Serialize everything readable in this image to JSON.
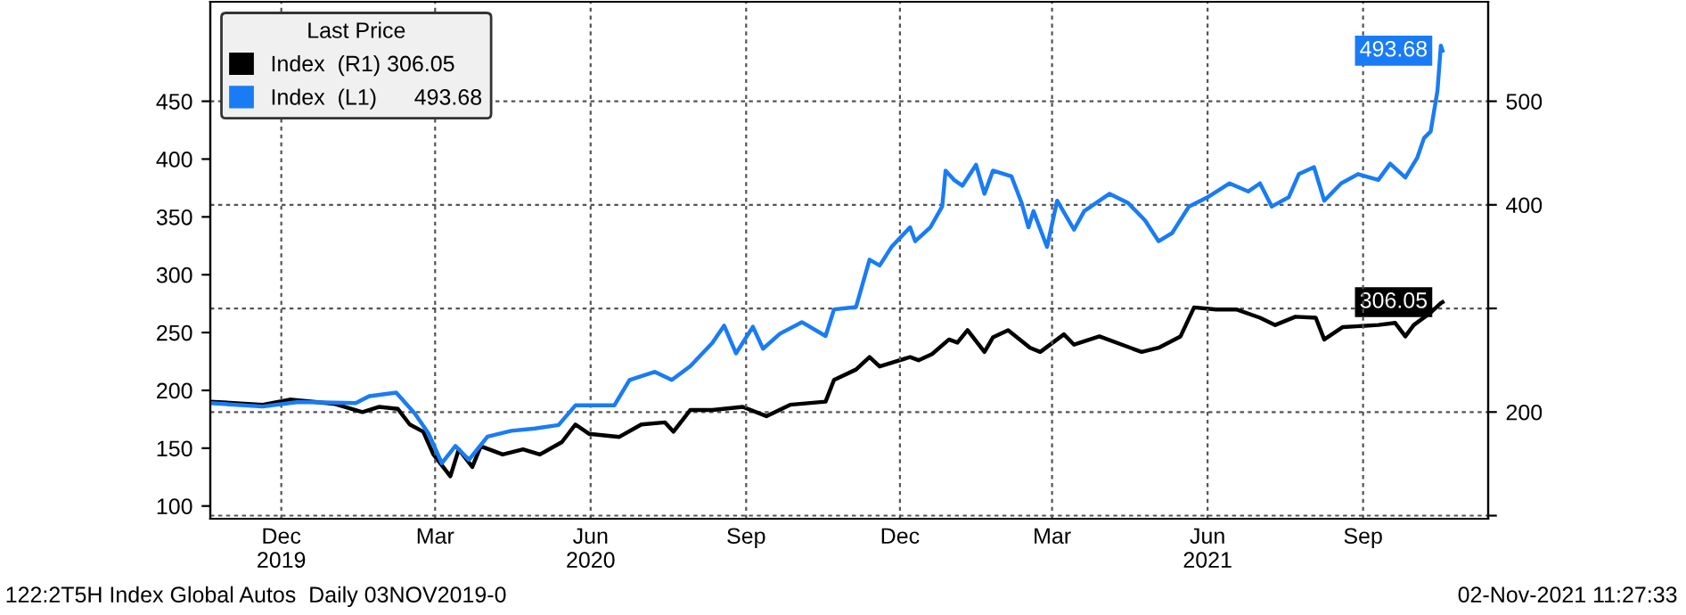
{
  "chart_data": {
    "type": "line",
    "legend_title": "Last Price",
    "legend": "top left",
    "grid": true,
    "line_style": "solid",
    "xlim": [
      "2019-11-04",
      "2021-11-29"
    ],
    "xticks": [
      {
        "value": "2019-12-16",
        "label": "Dec\n2019"
      },
      {
        "value": "2020-03-16",
        "label": "Mar"
      },
      {
        "value": "2020-06-16",
        "label": "Jun\n2020"
      },
      {
        "value": "2020-09-16",
        "label": "Sep"
      },
      {
        "value": "2020-12-16",
        "label": "Dec"
      },
      {
        "value": "2021-03-16",
        "label": "Mar"
      },
      {
        "value": "2021-06-16",
        "label": "Jun\n2021"
      },
      {
        "value": "2021-09-16",
        "label": "Sep"
      }
    ],
    "ylim": [
      89,
      536
    ],
    "yticks": [
      100,
      150,
      200,
      250,
      300,
      350,
      400,
      450
    ],
    "y2lim": [
      97,
      596
    ],
    "y2ticks": [
      {
        "value": 100,
        "label": null
      },
      200,
      {
        "value": 300,
        "label": null
      },
      400,
      500
    ],
    "series": [
      {
        "name": "Index  (R1) 306.05",
        "color": "#000000",
        "axis": "y2",
        "x": [
          "2019-11-04",
          "2019-12-05",
          "2019-12-21",
          "2020-01-16",
          "2020-02-02",
          "2020-02-12",
          "2020-02-23",
          "2020-03-01",
          "2020-03-09",
          "2020-03-15",
          "2020-03-25",
          "2020-03-30",
          "2020-04-07",
          "2020-04-12",
          "2020-04-25",
          "2020-05-07",
          "2020-05-17",
          "2020-05-30",
          "2020-06-07",
          "2020-06-15",
          "2020-07-03",
          "2020-07-16",
          "2020-07-30",
          "2020-08-04",
          "2020-08-14",
          "2020-08-27",
          "2020-09-14",
          "2020-09-28",
          "2020-10-12",
          "2020-11-02",
          "2020-11-07",
          "2020-11-20",
          "2020-11-28",
          "2020-12-04",
          "2020-12-22",
          "2020-12-27",
          "2021-01-04",
          "2021-01-14",
          "2021-01-19",
          "2021-01-25",
          "2021-02-04",
          "2021-02-09",
          "2021-02-18",
          "2021-03-03",
          "2021-03-09",
          "2021-03-23",
          "2021-03-29",
          "2021-04-13",
          "2021-05-08",
          "2021-05-18",
          "2021-05-31",
          "2021-06-08",
          "2021-06-21",
          "2021-07-03",
          "2021-07-17",
          "2021-07-26",
          "2021-08-07",
          "2021-08-19",
          "2021-08-24",
          "2021-09-04",
          "2021-09-25",
          "2021-10-05",
          "2021-10-11",
          "2021-10-16",
          "2021-10-26",
          "2021-11-01",
          "2021-11-02"
        ],
        "values": [
          210,
          207,
          212,
          208,
          200,
          205,
          203,
          188,
          181,
          159,
          138,
          164,
          147,
          167,
          159,
          164,
          159,
          171,
          188,
          179,
          176,
          188,
          190,
          181,
          202,
          202,
          205,
          196,
          207,
          210,
          231,
          241,
          253,
          244,
          253,
          250,
          256,
          270,
          267,
          279,
          258,
          272,
          279,
          262,
          258,
          275,
          265,
          273,
          258,
          262,
          273,
          301,
          299,
          299,
          291,
          284,
          292,
          291,
          270,
          282,
          284,
          286,
          273,
          284,
          296,
          305,
          306.05
        ],
        "value_labels": [
          null,
          null,
          null,
          null,
          null,
          null,
          null,
          null,
          null,
          null,
          null,
          null,
          null,
          null,
          null,
          null,
          null,
          null,
          null,
          null,
          null,
          null,
          null,
          null,
          null,
          null,
          null,
          null,
          null,
          null,
          null,
          null,
          null,
          null,
          null,
          null,
          null,
          null,
          null,
          null,
          null,
          null,
          null,
          null,
          null,
          null,
          null,
          null,
          null,
          null,
          null,
          null,
          null,
          null,
          null,
          null,
          null,
          null,
          null,
          null,
          null,
          null,
          null,
          null,
          null,
          null,
          "306.05"
        ]
      },
      {
        "name": "Index  (L1)      493.68",
        "color": "#1a7cf5",
        "axis": "y",
        "x": [
          "2019-11-04",
          "2019-12-05",
          "2019-12-26",
          "2020-01-29",
          "2020-02-06",
          "2020-02-22",
          "2020-03-04",
          "2020-03-12",
          "2020-03-20",
          "2020-03-28",
          "2020-04-05",
          "2020-04-16",
          "2020-04-30",
          "2020-05-14",
          "2020-05-28",
          "2020-06-07",
          "2020-06-18",
          "2020-06-30",
          "2020-07-09",
          "2020-07-24",
          "2020-08-03",
          "2020-08-14",
          "2020-08-27",
          "2020-09-03",
          "2020-09-10",
          "2020-09-20",
          "2020-09-26",
          "2020-10-06",
          "2020-10-19",
          "2020-11-02",
          "2020-11-07",
          "2020-11-20",
          "2020-11-28",
          "2020-12-04",
          "2020-12-11",
          "2020-12-22",
          "2020-12-25",
          "2021-01-03",
          "2021-01-10",
          "2021-01-12",
          "2021-01-17",
          "2021-01-22",
          "2021-01-30",
          "2021-02-04",
          "2021-02-09",
          "2021-02-20",
          "2021-02-26",
          "2021-03-02",
          "2021-03-05",
          "2021-03-13",
          "2021-03-19",
          "2021-03-29",
          "2021-04-04",
          "2021-04-19",
          "2021-04-30",
          "2021-05-10",
          "2021-05-18",
          "2021-05-26",
          "2021-06-05",
          "2021-06-16",
          "2021-06-29",
          "2021-07-10",
          "2021-07-17",
          "2021-07-24",
          "2021-08-03",
          "2021-08-09",
          "2021-08-18",
          "2021-08-24",
          "2021-09-03",
          "2021-09-13",
          "2021-09-25",
          "2021-10-02",
          "2021-10-11",
          "2021-10-18",
          "2021-10-22",
          "2021-10-26",
          "2021-10-30",
          "2021-11-01",
          "2021-11-02"
        ],
        "values": [
          189,
          186,
          190,
          189,
          195,
          198,
          180,
          163,
          137,
          152,
          140,
          160,
          165,
          167,
          170,
          187,
          187,
          187,
          209,
          216,
          209,
          221,
          241,
          256,
          232,
          255,
          236,
          249,
          259,
          247,
          270,
          272,
          313,
          308,
          324,
          341,
          329,
          341,
          359,
          390,
          382,
          377,
          395,
          370,
          390,
          385,
          362,
          341,
          355,
          324,
          364,
          339,
          355,
          370,
          362,
          347,
          329,
          336,
          359,
          367,
          379,
          372,
          379,
          359,
          367,
          387,
          393,
          364,
          379,
          387,
          382,
          396,
          384,
          401,
          418,
          424,
          459,
          498,
          493.68
        ],
        "value_labels": [
          null,
          null,
          null,
          null,
          null,
          null,
          null,
          null,
          null,
          null,
          null,
          null,
          null,
          null,
          null,
          null,
          null,
          null,
          null,
          null,
          null,
          null,
          null,
          null,
          null,
          null,
          null,
          null,
          null,
          null,
          null,
          null,
          null,
          null,
          null,
          null,
          null,
          null,
          null,
          null,
          null,
          null,
          null,
          null,
          null,
          null,
          null,
          null,
          null,
          null,
          null,
          null,
          null,
          null,
          null,
          null,
          null,
          null,
          null,
          null,
          null,
          null,
          null,
          null,
          null,
          null,
          null,
          null,
          null,
          null,
          null,
          null,
          null,
          null,
          null,
          null,
          null,
          null,
          "493.68"
        ]
      }
    ],
    "annotations": [
      "122:2T5H Index Global Autos  Daily 03NOV2019-0",
      "02-Nov-2021 11:27:33"
    ]
  }
}
